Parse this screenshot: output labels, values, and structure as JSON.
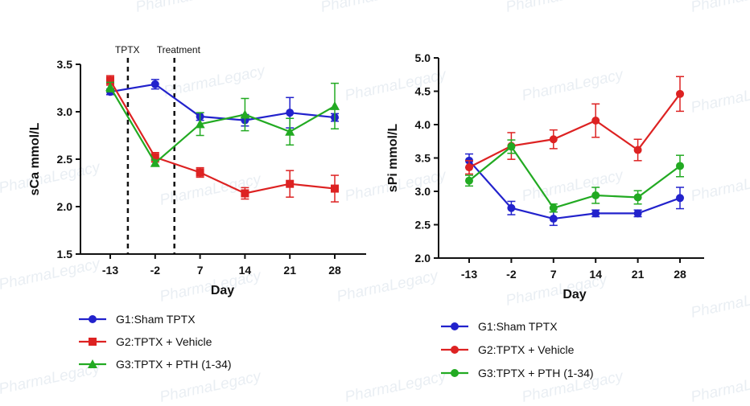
{
  "watermark": {
    "text": "PharmaLegacy"
  },
  "chart_data": [
    {
      "type": "line",
      "id": "sca",
      "title": "",
      "xlabel": "Day",
      "ylabel": "sCa mmol/L",
      "categories": [
        "-13",
        "-2",
        "7",
        "14",
        "21",
        "28"
      ],
      "ylim": [
        1.5,
        3.5
      ],
      "yticks": [
        "1.5",
        "2.0",
        "2.5",
        "3.0",
        "3.5"
      ],
      "grid": false,
      "legend_position": "bottom-left",
      "annotations": [
        {
          "text": "TPTX",
          "after_category_index": 0
        },
        {
          "text": "Treatment",
          "after_category_index": 1
        }
      ],
      "series": [
        {
          "name": "G1:Sham TPTX",
          "color": "#2222cc",
          "marker": "circle",
          "values": [
            3.21,
            3.29,
            2.95,
            2.91,
            2.99,
            2.94
          ],
          "errors": [
            0.03,
            0.05,
            0.04,
            0.06,
            0.16,
            0.04
          ]
        },
        {
          "name": "G2:TPTX + Vehicle",
          "color": "#dd2222",
          "marker": "square",
          "values": [
            3.33,
            2.52,
            2.36,
            2.14,
            2.24,
            2.19
          ],
          "errors": [
            0.05,
            0.05,
            0.05,
            0.06,
            0.14,
            0.14
          ]
        },
        {
          "name": "G3:TPTX + PTH (1-34)",
          "color": "#22aa22",
          "marker": "triangle",
          "values": [
            3.26,
            2.46,
            2.87,
            2.97,
            2.79,
            3.06
          ],
          "errors": [
            0.05,
            0.03,
            0.12,
            0.17,
            0.14,
            0.24
          ]
        }
      ]
    },
    {
      "type": "line",
      "id": "spi",
      "title": "",
      "xlabel": "Day",
      "ylabel": "sPi mmol/L",
      "categories": [
        "-13",
        "-2",
        "7",
        "14",
        "21",
        "28"
      ],
      "ylim": [
        2.0,
        5.0
      ],
      "yticks": [
        "2.0",
        "2.5",
        "3.0",
        "3.5",
        "4.0",
        "4.5",
        "5.0"
      ],
      "grid": false,
      "legend_position": "bottom-left",
      "series": [
        {
          "name": "G1:Sham TPTX",
          "color": "#2222cc",
          "marker": "circle",
          "values": [
            3.46,
            2.75,
            2.59,
            2.67,
            2.67,
            2.9
          ],
          "errors": [
            0.1,
            0.1,
            0.1,
            0.05,
            0.05,
            0.16
          ]
        },
        {
          "name": "G2:TPTX + Vehicle",
          "color": "#dd2222",
          "marker": "circle",
          "values": [
            3.36,
            3.68,
            3.78,
            4.06,
            3.62,
            4.46
          ],
          "errors": [
            0.1,
            0.2,
            0.14,
            0.25,
            0.16,
            0.26
          ]
        },
        {
          "name": "G3:TPTX + PTH (1-34)",
          "color": "#22aa22",
          "marker": "circle",
          "values": [
            3.16,
            3.67,
            2.75,
            2.94,
            2.91,
            3.38
          ],
          "errors": [
            0.08,
            0.1,
            0.06,
            0.12,
            0.1,
            0.16
          ]
        }
      ]
    }
  ]
}
